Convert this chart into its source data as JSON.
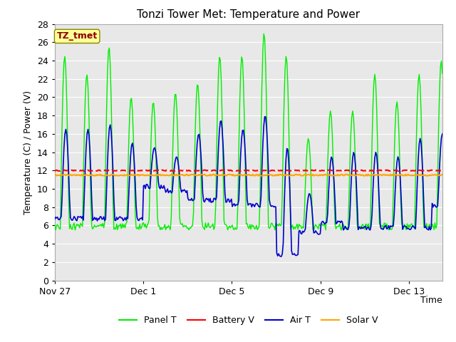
{
  "title": "Tonzi Tower Met: Temperature and Power",
  "ylabel": "Temperature (C) / Power (V)",
  "xlabel": "Time",
  "ylim": [
    0,
    28
  ],
  "fig_bg": "#ffffff",
  "plot_bg": "#e8e8e8",
  "annotation_text": "TZ_tmet",
  "annotation_bg": "#ffff99",
  "annotation_border": "#8b0000",
  "battery_v": 12.0,
  "solar_v": 11.5,
  "xtick_labels": [
    "Nov 27",
    "Dec 1",
    "Dec 5",
    "Dec 9",
    "Dec 13"
  ],
  "xtick_positions": [
    0,
    4,
    8,
    12,
    16
  ],
  "total_days": 17.5,
  "green_color": "#00ee00",
  "red_color": "#ff0000",
  "blue_color": "#0000cc",
  "orange_color": "#ffa500",
  "grid_color": "#ffffff",
  "panel_seed": 10,
  "air_seed": 20
}
